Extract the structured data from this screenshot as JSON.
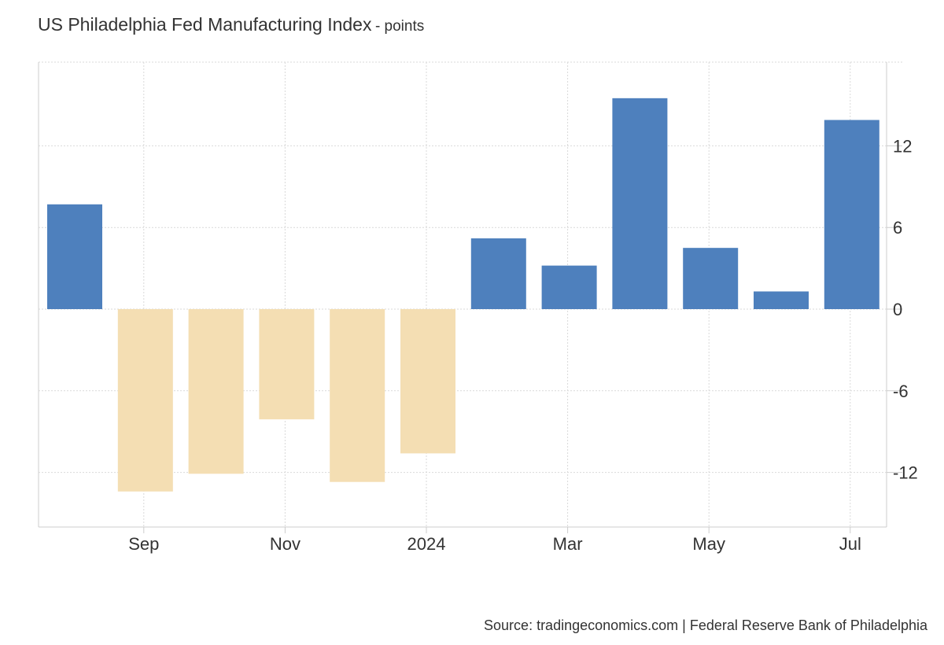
{
  "header": {
    "title": "US Philadelphia Fed Manufacturing Index",
    "subtitle": "- points"
  },
  "footer": {
    "source": "Source: tradingeconomics.com | Federal Reserve Bank of Philadelphia"
  },
  "chart_data": {
    "type": "bar",
    "title": "US Philadelphia Fed Manufacturing Index",
    "subtitle": "- points",
    "xlabel": "",
    "ylabel": "",
    "categories": [
      "Aug 2023",
      "Sep 2023",
      "Oct 2023",
      "Nov 2023",
      "Dec 2023",
      "Jan 2024",
      "Feb 2024",
      "Mar 2024",
      "Apr 2024",
      "May 2024",
      "Jun 2024",
      "Jul 2024"
    ],
    "values": [
      7.7,
      -13.4,
      -12.1,
      -8.1,
      -12.7,
      -10.6,
      5.2,
      3.2,
      15.5,
      4.5,
      1.3,
      13.9
    ],
    "x_tick_labels": [
      {
        "label": "Sep",
        "index": 1
      },
      {
        "label": "Nov",
        "index": 3
      },
      {
        "label": "2024",
        "index": 5
      },
      {
        "label": "Mar",
        "index": 7
      },
      {
        "label": "May",
        "index": 9
      },
      {
        "label": "Jul",
        "index": 11
      }
    ],
    "y_ticks": [
      12,
      6,
      0,
      -6,
      -12
    ],
    "ylim": [
      -16,
      18
    ],
    "grid": true,
    "y_axis_position": "right",
    "colors": {
      "positive": "#4e80bd",
      "negative": "#f4deb3",
      "grid": "#d9d9d9",
      "axis": "#cccccc"
    }
  }
}
